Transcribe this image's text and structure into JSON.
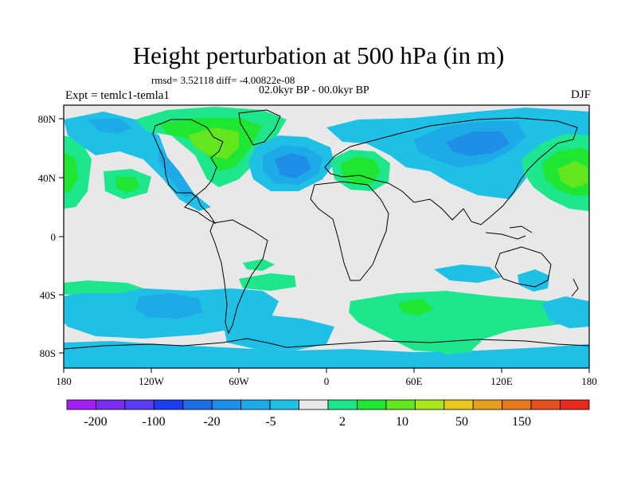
{
  "title": "Height perturbation at 500 hPa (in m)",
  "stats_line": "rmsd= 3.52118 diff= -4.00822e-08",
  "timespan": "02.0kyr BP - 00.0kyr BP",
  "experiment": "Expt = temlc1-temla1",
  "season": "DJF",
  "axes": {
    "lat_ticks": [
      "80N",
      "40N",
      "0",
      "40S",
      "80S"
    ],
    "lon_ticks": [
      "180",
      "120W",
      "60W",
      "0",
      "60E",
      "120E",
      "180"
    ]
  },
  "colorbar": {
    "levels": [
      "-200",
      "-100",
      "-20",
      "-5",
      "2",
      "10",
      "50",
      "150"
    ],
    "colors": [
      "#a020f0",
      "#7a2cf0",
      "#5a3cf0",
      "#1e3cf0",
      "#1e6ce6",
      "#1e8ee6",
      "#1eaae6",
      "#1ec0e6",
      "#e8e8e8",
      "#1ee68c",
      "#1ee632",
      "#64e61e",
      "#a8e61e",
      "#e6c81e",
      "#e6a01e",
      "#e6781e",
      "#e6501e",
      "#e6281e"
    ]
  }
}
